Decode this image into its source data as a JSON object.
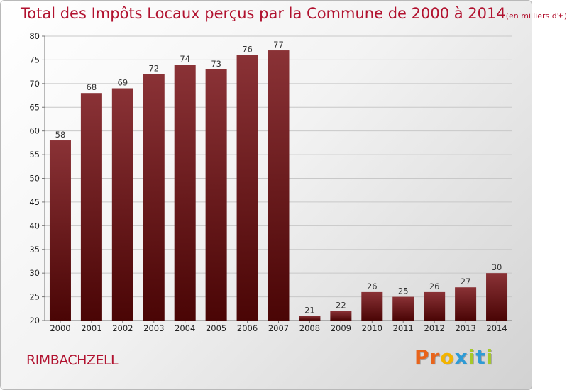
{
  "title_main": "Total des Impôts Locaux perçus par la Commune de 2000 à 2014",
  "title_unit": "(en milliers d'€)",
  "commune": "RIMBACHZELL",
  "logo": "Proxiti",
  "logo_colors": [
    "#e8641b",
    "#e8641b",
    "#f3b400",
    "#2e9bd6",
    "#a6c82a",
    "#2e9bd6",
    "#a6c82a"
  ],
  "colors": {
    "bar_top": "#8a3236",
    "bar_bottom": "#4a0505",
    "title": "#b1122f"
  },
  "chart_data": {
    "type": "bar",
    "title": "Total des Impôts Locaux perçus par la Commune de 2000 à 2014(en milliers d'€)",
    "categories": [
      "2000",
      "2001",
      "2002",
      "2003",
      "2004",
      "2005",
      "2006",
      "2007",
      "2008",
      "2009",
      "2010",
      "2011",
      "2012",
      "2013",
      "2014"
    ],
    "values": [
      58,
      68,
      69,
      72,
      74,
      73,
      76,
      77,
      21,
      22,
      26,
      25,
      26,
      27,
      30
    ],
    "ylim": [
      20,
      80
    ],
    "yticks": [
      20,
      25,
      30,
      35,
      40,
      45,
      50,
      55,
      60,
      65,
      70,
      75,
      80
    ],
    "grid": true,
    "xlabel": "",
    "ylabel": ""
  }
}
